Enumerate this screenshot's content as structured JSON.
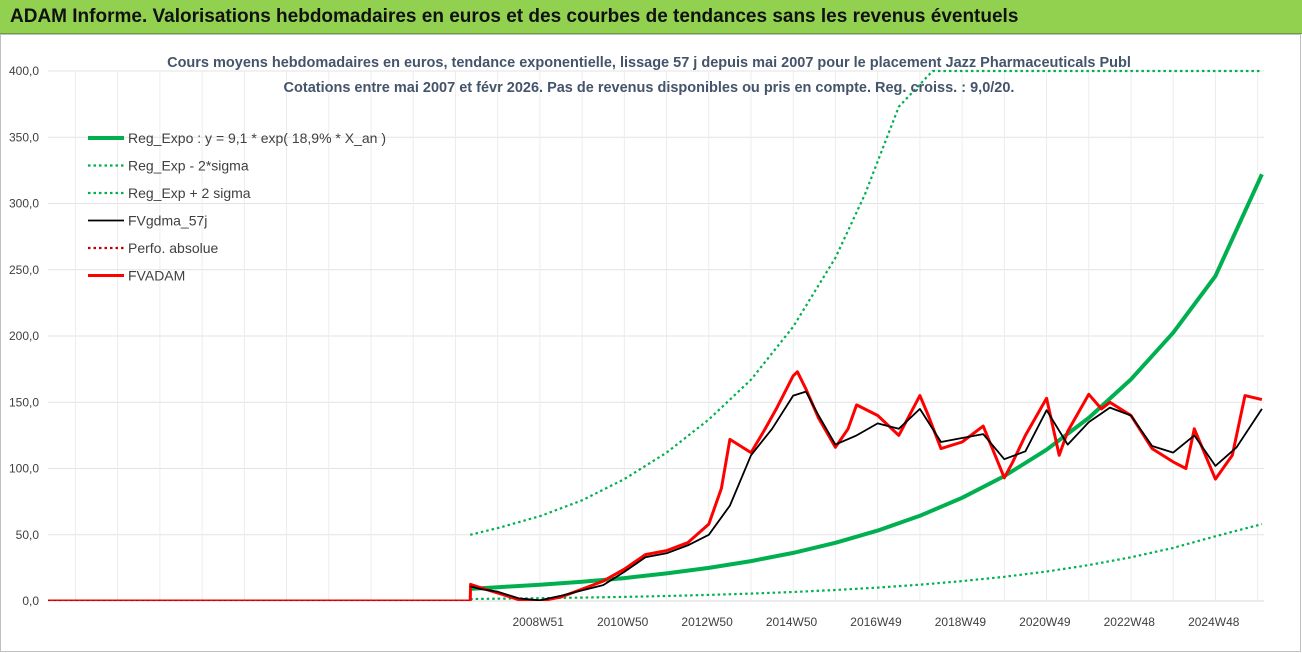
{
  "banner": {
    "title": "ADAM Informe. Valorisations hebdomadaires en euros et des courbes de tendances sans les revenus éventuels"
  },
  "colors": {
    "banner_bg": "#92d050",
    "reg_expo": "#00b050",
    "fvgdma": "#000000",
    "fvadam": "#ff0000",
    "perfo": "#c00000",
    "title": "#44546a"
  },
  "chart_data": {
    "type": "line",
    "title": "Cours moyens hebdomadaires en euros, tendance exponentielle, lissage 57 j depuis mai 2007 pour le placement Jazz Pharmaceuticals Publ",
    "subtitle": "Cotations entre mai 2007 et févr 2026. Pas de revenus disponibles ou pris en compte. Reg. croiss. : 9,0/20.",
    "ylim": [
      0,
      400
    ],
    "y_ticks": [
      "0,0",
      "50,0",
      "100,0",
      "150,0",
      "200,0",
      "250,0",
      "300,0",
      "350,0",
      "400,0"
    ],
    "x_ticks": [
      "2008W51",
      "2010W50",
      "2012W50",
      "2014W50",
      "2016W49",
      "2018W49",
      "2020W49",
      "2022W48",
      "2024W48"
    ],
    "x_tick_years": [
      2008.96,
      2010.96,
      2012.96,
      2014.96,
      2016.96,
      2018.96,
      2020.96,
      2022.96,
      2024.96
    ],
    "x_range": [
      1997.35,
      2026.15
    ],
    "data_start": 2007.35,
    "grid": true,
    "legend": "top-left",
    "series": [
      {
        "name": "Reg_Expo : y = 9,1 * exp( 18,9% *  X_an )",
        "style": "solid-thick",
        "color": "#00b050",
        "x": [
          2007.35,
          2008,
          2009,
          2010,
          2011,
          2012,
          2013,
          2014,
          2015,
          2016,
          2017,
          2018,
          2019,
          2020,
          2021,
          2022,
          2023,
          2024,
          2025,
          2026.1
        ],
        "y": [
          9.1,
          10.4,
          12.2,
          14.5,
          17.3,
          20.8,
          25.0,
          30.1,
          36.3,
          43.9,
          53.1,
          64.3,
          77.9,
          94.3,
          114.2,
          138.2,
          167.3,
          202.5,
          245.2,
          322.0
        ]
      },
      {
        "name": "Reg_Exp - 2*sigma",
        "style": "dotted",
        "color": "#00b050",
        "x": [
          2007.35,
          2008,
          2009,
          2010,
          2011,
          2012,
          2013,
          2014,
          2015,
          2016,
          2017,
          2018,
          2019,
          2020,
          2021,
          2022,
          2023,
          2024,
          2025,
          2026.1
        ],
        "y": [
          1.5,
          1.7,
          2.1,
          2.6,
          3.1,
          3.8,
          4.6,
          5.6,
          6.8,
          8.3,
          10.1,
          12.3,
          15.0,
          18.3,
          22.3,
          27.1,
          33.0,
          40.1,
          48.8,
          58.0
        ]
      },
      {
        "name": "Reg_Exp + 2 sigma",
        "style": "dotted",
        "color": "#00b050",
        "x": [
          2007.35,
          2008,
          2009,
          2010,
          2011,
          2012,
          2013,
          2014,
          2015,
          2016,
          2016.7,
          2017.5,
          2018.3,
          2019.1,
          2019.9,
          2020.7,
          2021.5,
          2022.3,
          2023.1,
          2023.9,
          2024.7,
          2025.5,
          2026.1
        ],
        "y": [
          50.0,
          55.0,
          64.0,
          76.0,
          92.0,
          112.0,
          137.0,
          167.0,
          207.0,
          259.0,
          307.0,
          373.0,
          400,
          400,
          400,
          400,
          400,
          400,
          400,
          400,
          400,
          400,
          400
        ],
        "clip": true
      },
      {
        "name": "FVgdma_57j",
        "style": "solid",
        "color": "#000000",
        "x": [
          2007.35,
          2007.6,
          2008,
          2008.5,
          2009,
          2009.5,
          2010,
          2010.5,
          2011,
          2011.5,
          2012,
          2012.5,
          2013,
          2013.5,
          2014,
          2014.5,
          2015,
          2015.3,
          2015.6,
          2016,
          2016.5,
          2017,
          2017.5,
          2018,
          2018.5,
          2019,
          2019.5,
          2020,
          2020.5,
          2021,
          2021.5,
          2022,
          2022.5,
          2023,
          2023.5,
          2024,
          2024.5,
          2025,
          2025.5,
          2026.1
        ],
        "y": [
          11.0,
          9.0,
          7.0,
          2.0,
          0.5,
          4.0,
          8.0,
          12.0,
          22.0,
          33.0,
          36.0,
          42.0,
          50.0,
          72.0,
          110.0,
          130.0,
          155.0,
          158.0,
          140.0,
          118.0,
          125.0,
          134.0,
          130.0,
          145.0,
          120.0,
          123.0,
          126.0,
          107.0,
          113.0,
          144.0,
          118.0,
          135.0,
          146.0,
          140.0,
          117.0,
          112.0,
          125.0,
          102.0,
          116.0,
          145.0
        ]
      },
      {
        "name": "Perfo. absolue",
        "style": "dotted",
        "color": "#c00000",
        "x": [
          1997.35,
          2007.35
        ],
        "y": [
          0.0,
          0.0
        ]
      },
      {
        "name": "FVADAM",
        "style": "solid-thick",
        "color": "#ff0000",
        "x": [
          1997.35,
          2007.35,
          2007.36,
          2007.6,
          2008,
          2008.5,
          2009,
          2009.5,
          2010,
          2010.5,
          2011,
          2011.5,
          2012,
          2012.5,
          2013,
          2013.3,
          2013.5,
          2014,
          2014.3,
          2014.6,
          2015,
          2015.1,
          2015.3,
          2015.6,
          2016,
          2016.3,
          2016.5,
          2017,
          2017.5,
          2018,
          2018.2,
          2018.5,
          2019,
          2019.5,
          2020,
          2020.2,
          2020.5,
          2021,
          2021.3,
          2021.5,
          2022,
          2022.3,
          2022.5,
          2023,
          2023.5,
          2024,
          2024.3,
          2024.5,
          2025,
          2025.4,
          2025.7,
          2026.1
        ],
        "y": [
          0.0,
          0.0,
          12.5,
          10.0,
          6.0,
          1.0,
          0.0,
          3.0,
          9.0,
          15.0,
          24.0,
          35.0,
          38.0,
          44.0,
          58.0,
          85.0,
          122.0,
          112.0,
          128.0,
          145.0,
          170.0,
          173.0,
          160.0,
          138.0,
          116.0,
          130.0,
          148.0,
          140.0,
          125.0,
          155.0,
          140.0,
          115.0,
          120.0,
          132.0,
          93.0,
          105.0,
          125.0,
          153.0,
          110.0,
          128.0,
          156.0,
          145.0,
          150.0,
          140.0,
          115.0,
          105.0,
          100.0,
          130.0,
          92.0,
          110.0,
          155.0,
          152.0
        ]
      }
    ]
  }
}
